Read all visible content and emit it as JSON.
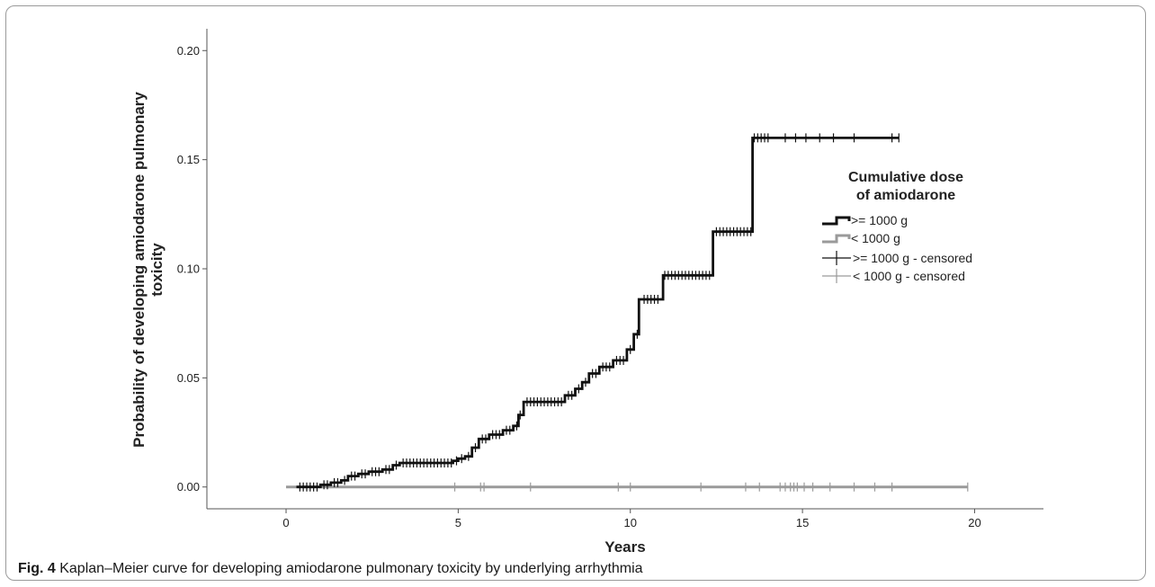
{
  "figure": {
    "label": "Fig. 4",
    "caption": "Kaplan–Meier curve for developing amiodarone pulmonary toxicity by underlying arrhythmia"
  },
  "chart_data": {
    "type": "line",
    "step": true,
    "xlabel": "Years",
    "ylabel_lines": [
      "Probability of developing amiodarone pulmonary",
      "toxicity"
    ],
    "xlim": [
      -2.3,
      22
    ],
    "ylim": [
      -0.01,
      0.21
    ],
    "x_ticks": [
      0,
      5,
      10,
      15,
      20
    ],
    "y_ticks": [
      0.0,
      0.05,
      0.1,
      0.15,
      0.2
    ],
    "x_tick_labels": [
      "0",
      "5",
      "10",
      "15",
      "20"
    ],
    "y_tick_labels": [
      "0.00",
      "0.05",
      "0.10",
      "0.15",
      "0.20"
    ],
    "grid": false,
    "legend": {
      "title_lines": [
        "Cumulative dose",
        "of amiodarone"
      ],
      "placement": "right",
      "entries": [
        ">= 1000 g",
        "< 1000 g",
        ">= 1000 g - censored",
        "< 1000 g - censored"
      ]
    },
    "colors": {
      "high": "#111111",
      "low": "#9a9a9a",
      "axis": "#555555",
      "text": "#222222"
    },
    "series": [
      {
        "name": ">= 1000 g",
        "x": [
          0.3,
          1.0,
          1.3,
          1.6,
          1.8,
          2.1,
          2.4,
          2.8,
          3.1,
          3.3,
          4.85,
          5.0,
          5.2,
          5.4,
          5.6,
          5.9,
          6.3,
          6.6,
          6.75,
          6.9,
          8.1,
          8.4,
          8.6,
          8.8,
          9.1,
          9.5,
          9.9,
          10.1,
          10.25,
          10.95,
          12.4,
          13.55,
          17.8
        ],
        "y": [
          0.0,
          0.001,
          0.002,
          0.003,
          0.005,
          0.006,
          0.007,
          0.008,
          0.01,
          0.011,
          0.012,
          0.013,
          0.014,
          0.018,
          0.022,
          0.024,
          0.026,
          0.028,
          0.033,
          0.039,
          0.042,
          0.045,
          0.048,
          0.052,
          0.055,
          0.058,
          0.063,
          0.07,
          0.086,
          0.097,
          0.117,
          0.16,
          0.16
        ]
      },
      {
        "name": "< 1000 g",
        "x": [
          0.0,
          19.8
        ],
        "y": [
          0.0,
          0.0
        ]
      }
    ],
    "censored": {
      "high": {
        "x": [
          0.4,
          0.5,
          0.6,
          0.7,
          0.8,
          0.9,
          1.1,
          1.2,
          1.4,
          1.5,
          1.7,
          1.9,
          2.0,
          2.2,
          2.3,
          2.5,
          2.6,
          2.7,
          2.9,
          3.0,
          3.2,
          3.4,
          3.5,
          3.6,
          3.7,
          3.8,
          3.9,
          4.0,
          4.1,
          4.2,
          4.3,
          4.4,
          4.5,
          4.6,
          4.7,
          4.8,
          4.95,
          5.1,
          5.3,
          5.5,
          5.7,
          5.8,
          6.0,
          6.1,
          6.2,
          6.4,
          6.5,
          6.7,
          6.8,
          7.0,
          7.1,
          7.2,
          7.3,
          7.4,
          7.5,
          7.6,
          7.7,
          7.8,
          7.9,
          8.0,
          8.2,
          8.3,
          8.5,
          8.7,
          8.9,
          9.0,
          9.2,
          9.3,
          9.4,
          9.6,
          9.7,
          9.8,
          10.0,
          10.2,
          10.4,
          10.5,
          10.6,
          10.7,
          10.8,
          11.0,
          11.1,
          11.2,
          11.3,
          11.4,
          11.5,
          11.6,
          11.7,
          11.8,
          11.9,
          12.0,
          12.1,
          12.2,
          12.3,
          12.5,
          12.6,
          12.7,
          12.8,
          12.9,
          13.0,
          13.1,
          13.2,
          13.3,
          13.4,
          13.5,
          13.6,
          13.7,
          13.8,
          13.9,
          14.0,
          14.5,
          14.8,
          15.1,
          15.5,
          15.9,
          16.5,
          17.6,
          17.8
        ],
        "y_from_series": ">= 1000 g"
      },
      "low": {
        "x": [
          4.9,
          5.65,
          5.75,
          7.1,
          9.65,
          10.0,
          12.05,
          13.35,
          13.75,
          14.35,
          14.5,
          14.65,
          14.75,
          14.85,
          15.05,
          15.3,
          15.8,
          16.5,
          17.1,
          17.6,
          19.8
        ],
        "y": 0.0
      }
    }
  }
}
